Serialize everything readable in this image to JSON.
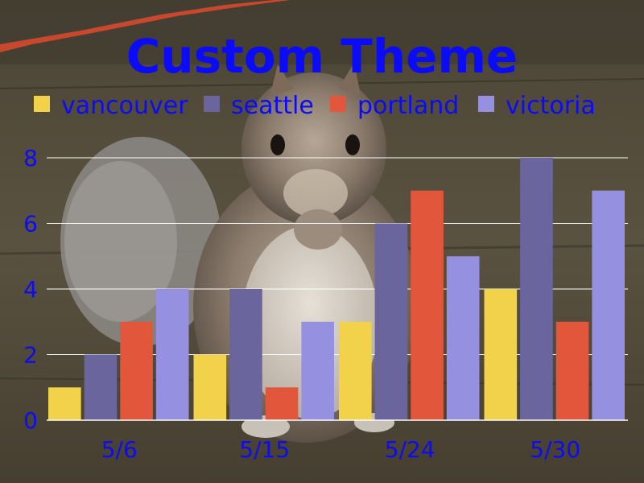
{
  "chart_data": {
    "type": "bar",
    "title": "Custom Theme",
    "categories": [
      "5/6",
      "5/15",
      "5/24",
      "5/30"
    ],
    "series": [
      {
        "name": "vancouver",
        "color": "#f2d24a",
        "values": [
          1,
          2,
          3,
          4
        ]
      },
      {
        "name": "seattle",
        "color": "#6a669d",
        "values": [
          2,
          4,
          6,
          8
        ]
      },
      {
        "name": "portland",
        "color": "#e2573b",
        "values": [
          3,
          1,
          7,
          3
        ]
      },
      {
        "name": "victoria",
        "color": "#9690e0",
        "values": [
          4,
          3,
          5,
          7
        ]
      }
    ],
    "xlabel": "",
    "ylabel": "",
    "ylim": [
      0,
      8
    ],
    "yticks": [
      0,
      2,
      4,
      6,
      8
    ],
    "grid": true,
    "legend_position": "top",
    "text_color": "#0b0bf5",
    "grid_color": "#ffffff",
    "background": "photo of a squirrel eating on a wooden deck"
  }
}
